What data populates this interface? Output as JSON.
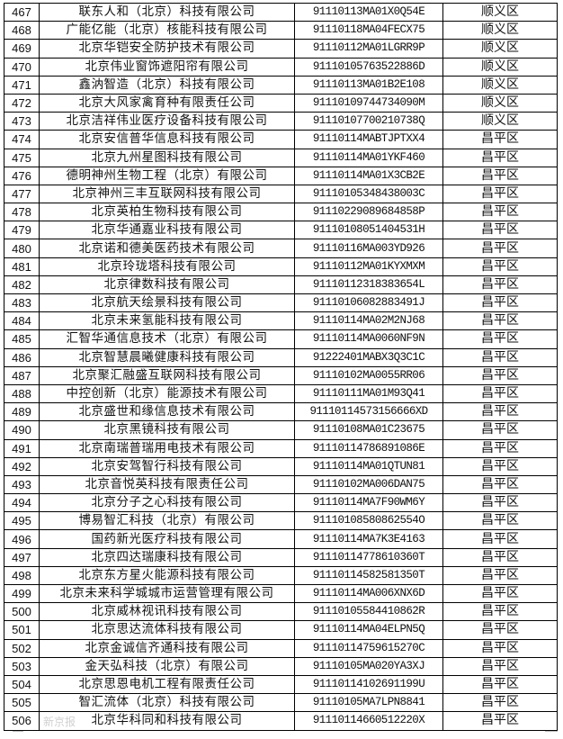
{
  "rows": [
    {
      "no": "467",
      "name": "联东人和（北京）科技有限公司",
      "code": "91110113MA01X0Q54E",
      "district": "顺义区"
    },
    {
      "no": "468",
      "name": "广能亿能（北京）核能科技有限公司",
      "code": "91110118MA04FECX75",
      "district": "顺义区"
    },
    {
      "no": "469",
      "name": "北京华铠安全防护技术有限公司",
      "code": "91110112MA01LGRR9P",
      "district": "顺义区"
    },
    {
      "no": "470",
      "name": "北京伟业窗饰遮阳帘有限公司",
      "code": "91110105763522886D",
      "district": "顺义区"
    },
    {
      "no": "471",
      "name": "鑫汭智造（北京）科技有限公司",
      "code": "91110113MA01B2E108",
      "district": "顺义区"
    },
    {
      "no": "472",
      "name": "北京大风家禽育种有限责任公司",
      "code": "91110109744734090M",
      "district": "顺义区"
    },
    {
      "no": "473",
      "name": "北京洁祥伟业医疗设备科技有限公司",
      "code": "91110107700210738Q",
      "district": "顺义区"
    },
    {
      "no": "474",
      "name": "北京安信普华信息科技有限公司",
      "code": "91110114MABTJPTXX4",
      "district": "昌平区"
    },
    {
      "no": "475",
      "name": "北京九州星图科技有限公司",
      "code": "91110114MA01YKF460",
      "district": "昌平区"
    },
    {
      "no": "476",
      "name": "德明神州生物工程（北京）有限公司",
      "code": "91110114MA01X3CB2E",
      "district": "昌平区"
    },
    {
      "no": "477",
      "name": "北京神州三丰互联网科技有限公司",
      "code": "91110105348438003C",
      "district": "昌平区"
    },
    {
      "no": "478",
      "name": "北京英柏生物科技有限公司",
      "code": "91110229089684858P",
      "district": "昌平区"
    },
    {
      "no": "479",
      "name": "北京华通嘉业科技有限公司",
      "code": "91110108051404531H",
      "district": "昌平区"
    },
    {
      "no": "480",
      "name": "北京诺和德美医药技术有限公司",
      "code": "91110116MA003YD926",
      "district": "昌平区"
    },
    {
      "no": "481",
      "name": "北京玲珑塔科技有限公司",
      "code": "91110112MA01KYXMXM",
      "district": "昌平区"
    },
    {
      "no": "482",
      "name": "北京律数科技有限公司",
      "code": "91110112318383654L",
      "district": "昌平区"
    },
    {
      "no": "483",
      "name": "北京航天绘景科技有限公司",
      "code": "91110106082883491J",
      "district": "昌平区"
    },
    {
      "no": "484",
      "name": "北京未来氢能科技有限公司",
      "code": "91110114MA02M2NJ68",
      "district": "昌平区"
    },
    {
      "no": "485",
      "name": "汇智华通信息技术（北京）有限公司",
      "code": "91110114MA0060NF9N",
      "district": "昌平区"
    },
    {
      "no": "486",
      "name": "北京智慧晨曦健康科技有限公司",
      "code": "91222401MABX3Q3C1C",
      "district": "昌平区"
    },
    {
      "no": "487",
      "name": "北京聚汇融盛互联网科技有限公司",
      "code": "91110102MA0055RR06",
      "district": "昌平区"
    },
    {
      "no": "488",
      "name": "中控创新（北京）能源技术有限公司",
      "code": "91110111MA01M93Q41",
      "district": "昌平区"
    },
    {
      "no": "489",
      "name": "北京盛世和缘信息技术有限公司",
      "code": "91110114573156666XD",
      "district": "昌平区"
    },
    {
      "no": "490",
      "name": "北京黑镜科技有限公司",
      "code": "91110108MA01C23675",
      "district": "昌平区"
    },
    {
      "no": "491",
      "name": "北京南瑞普瑞用电技术有限公司",
      "code": "91110114786891086E",
      "district": "昌平区"
    },
    {
      "no": "492",
      "name": "北京安驾智行科技有限公司",
      "code": "91110114MA01QTUN81",
      "district": "昌平区"
    },
    {
      "no": "493",
      "name": "北京音悦英科技有限责任公司",
      "code": "91110102MA006DAN75",
      "district": "昌平区"
    },
    {
      "no": "494",
      "name": "北京分子之心科技有限公司",
      "code": "91110114MA7F90WM6Y",
      "district": "昌平区"
    },
    {
      "no": "495",
      "name": "博易智汇科技（北京）有限公司",
      "code": "91110108580862554O",
      "district": "昌平区"
    },
    {
      "no": "496",
      "name": "国药新光医疗科技有限公司",
      "code": "91110114MA7K3E4163",
      "district": "昌平区"
    },
    {
      "no": "497",
      "name": "北京四达瑞康科技有限公司",
      "code": "91110114778610360T",
      "district": "昌平区"
    },
    {
      "no": "498",
      "name": "北京东方星火能源科技有限公司",
      "code": "91110114582581350T",
      "district": "昌平区"
    },
    {
      "no": "499",
      "name": "北京未来科学城城市运营管理有限公司",
      "code": "91110114MA006XNX6D",
      "district": "昌平区"
    },
    {
      "no": "500",
      "name": "北京威林视讯科技有限公司",
      "code": "91110105584410862R",
      "district": "昌平区"
    },
    {
      "no": "501",
      "name": "北京思达流体科技有限公司",
      "code": "91110114MA04ELPN5Q",
      "district": "昌平区"
    },
    {
      "no": "502",
      "name": "北京金诚信齐通科技有限公司",
      "code": "91110114759615270C",
      "district": "昌平区"
    },
    {
      "no": "503",
      "name": "金天弘科技（北京）有限公司",
      "code": "91110105MA020YA3XJ",
      "district": "昌平区"
    },
    {
      "no": "504",
      "name": "北京思恩电机工程有限责任公司",
      "code": "91110114102691199U",
      "district": "昌平区"
    },
    {
      "no": "505",
      "name": "智汇流体（北京）科技有限公司",
      "code": "91110105MA7LPN8841",
      "district": "昌平区"
    },
    {
      "no": "506",
      "name": "北京华科同和科技有限公司",
      "code": "91110114660512220X",
      "district": "昌平区"
    }
  ],
  "watermark": "新京报"
}
